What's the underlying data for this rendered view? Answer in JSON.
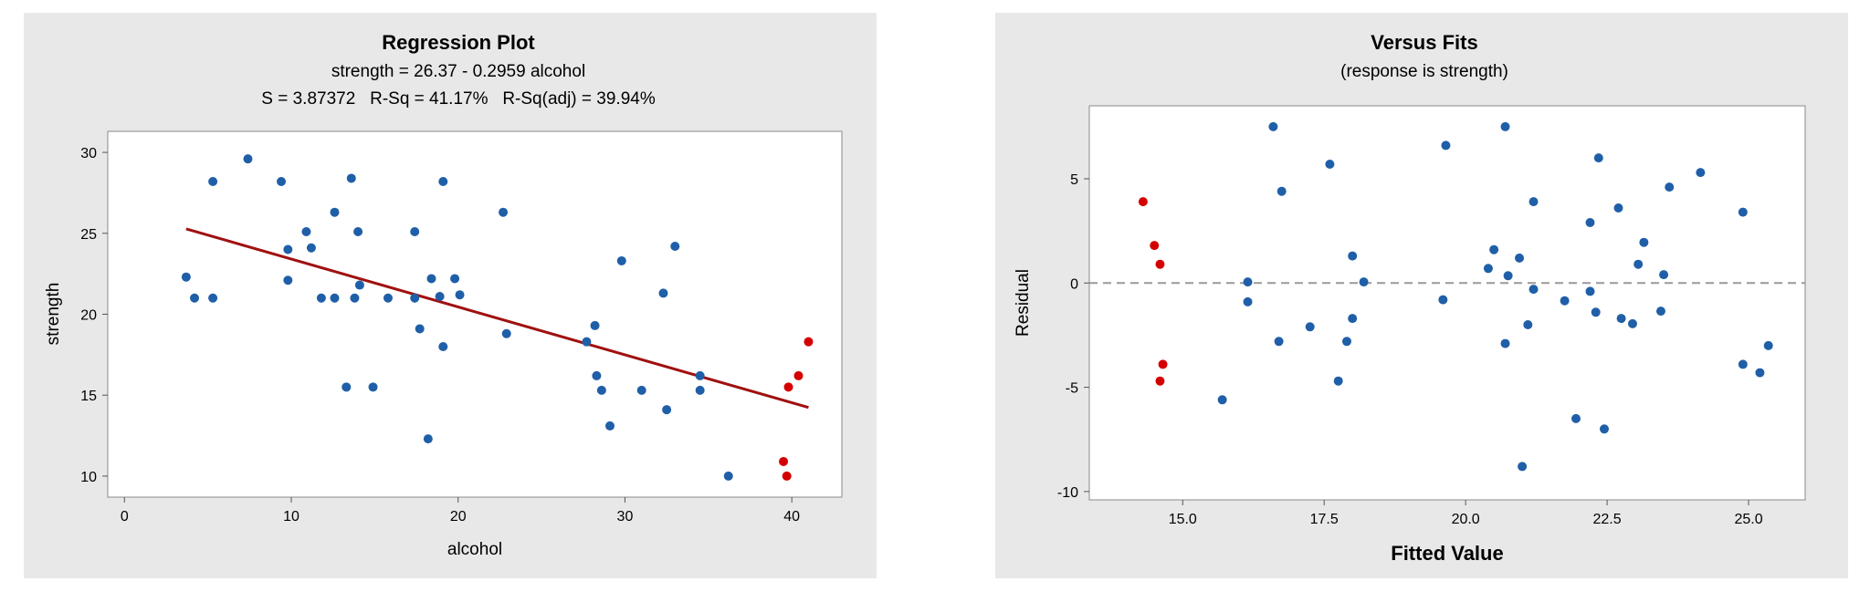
{
  "charts": {
    "left": {
      "title": "Regression Plot",
      "equation": "strength = 26.37 - 0.2959 alcohol",
      "stats": "S = 3.87372   R-Sq = 41.17%   R-Sq(adj) = 39.94%"
    },
    "right": {
      "title": "Versus Fits",
      "subtitle": "(response is strength)"
    }
  },
  "chart_data": [
    {
      "type": "scatter",
      "title": "Regression Plot",
      "subtitle": "strength = 26.37 - 0.2959 alcohol",
      "annotation": "S = 3.87372   R-Sq = 41.17%   R-Sq(adj) = 39.94%",
      "xlabel": "alcohol",
      "ylabel": "strength",
      "xlim": [
        -1,
        43
      ],
      "ylim": [
        8.7,
        31.3
      ],
      "xticks": [
        0,
        10,
        20,
        30,
        40
      ],
      "yticks": [
        10,
        15,
        20,
        25,
        30
      ],
      "fit_line": {
        "intercept": 26.37,
        "slope": -0.2959,
        "x_range": [
          3.7,
          41
        ],
        "color": "#a01010"
      },
      "colors": {
        "point": "#1f5fa8",
        "highlight": "#d40000"
      },
      "series": [
        {
          "color": "#1f5fa8",
          "points": [
            [
              3.7,
              22.3
            ],
            [
              4.2,
              21.0
            ],
            [
              5.3,
              28.2
            ],
            [
              5.3,
              21.0
            ],
            [
              7.4,
              29.6
            ],
            [
              9.4,
              28.2
            ],
            [
              9.8,
              24.0
            ],
            [
              9.8,
              22.1
            ],
            [
              10.9,
              25.1
            ],
            [
              11.2,
              24.1
            ],
            [
              11.8,
              21.0
            ],
            [
              12.6,
              26.3
            ],
            [
              12.6,
              21.0
            ],
            [
              13.3,
              15.5
            ],
            [
              13.6,
              28.4
            ],
            [
              13.8,
              21.0
            ],
            [
              14.0,
              25.1
            ],
            [
              14.1,
              21.8
            ],
            [
              14.9,
              15.5
            ],
            [
              15.8,
              21.0
            ],
            [
              17.4,
              25.1
            ],
            [
              17.4,
              21.0
            ],
            [
              17.7,
              19.1
            ],
            [
              18.2,
              12.3
            ],
            [
              18.4,
              22.2
            ],
            [
              18.9,
              21.1
            ],
            [
              19.1,
              28.2
            ],
            [
              19.1,
              18.0
            ],
            [
              19.8,
              22.2
            ],
            [
              20.1,
              21.2
            ],
            [
              22.7,
              26.3
            ],
            [
              22.9,
              18.8
            ],
            [
              27.7,
              18.3
            ],
            [
              28.2,
              19.3
            ],
            [
              28.3,
              16.2
            ],
            [
              28.6,
              15.3
            ],
            [
              29.1,
              13.1
            ],
            [
              29.8,
              23.3
            ],
            [
              31.0,
              15.3
            ],
            [
              32.3,
              21.3
            ],
            [
              32.5,
              14.1
            ],
            [
              33.0,
              24.2
            ],
            [
              34.5,
              15.3
            ],
            [
              34.5,
              16.2
            ],
            [
              36.2,
              10.0
            ]
          ]
        },
        {
          "color": "#d40000",
          "points": [
            [
              39.5,
              10.9
            ],
            [
              39.7,
              10.0
            ],
            [
              39.8,
              15.5
            ],
            [
              40.4,
              16.2
            ],
            [
              41.0,
              18.3
            ]
          ]
        }
      ]
    },
    {
      "type": "scatter",
      "title": "Versus Fits",
      "subtitle": "(response is strength)",
      "xlabel": "Fitted Value",
      "ylabel": "Residual",
      "xlim": [
        13.35,
        26.0
      ],
      "ylim": [
        -10.4,
        8.5
      ],
      "xticks": [
        15.0,
        17.5,
        20.0,
        22.5,
        25.0
      ],
      "xtick_labels": [
        "15.0",
        "17.5",
        "20.0",
        "22.5",
        "25.0"
      ],
      "yticks": [
        -10,
        -5,
        0,
        5
      ],
      "reference_line": {
        "y": 0,
        "style": "dashed",
        "color": "#999999"
      },
      "series": [
        {
          "color": "#d40000",
          "points": [
            [
              14.3,
              3.9
            ],
            [
              14.5,
              1.8
            ],
            [
              14.6,
              0.9
            ],
            [
              14.6,
              -4.7
            ],
            [
              14.65,
              -3.9
            ]
          ]
        },
        {
          "color": "#1f5fa8",
          "points": [
            [
              15.7,
              -5.6
            ],
            [
              16.15,
              0.05
            ],
            [
              16.15,
              -0.9
            ],
            [
              16.6,
              7.5
            ],
            [
              16.7,
              -2.8
            ],
            [
              16.75,
              4.4
            ],
            [
              17.25,
              -2.1
            ],
            [
              17.6,
              5.7
            ],
            [
              17.75,
              -4.7
            ],
            [
              17.9,
              -2.8
            ],
            [
              18.0,
              1.3
            ],
            [
              18.0,
              -1.7
            ],
            [
              18.2,
              0.05
            ],
            [
              19.6,
              -0.8
            ],
            [
              19.65,
              6.6
            ],
            [
              20.4,
              0.7
            ],
            [
              20.5,
              1.6
            ],
            [
              20.7,
              7.5
            ],
            [
              20.7,
              -2.9
            ],
            [
              20.75,
              0.35
            ],
            [
              20.95,
              1.2
            ],
            [
              21.0,
              -8.8
            ],
            [
              21.1,
              -2.0
            ],
            [
              21.2,
              3.9
            ],
            [
              21.2,
              -0.3
            ],
            [
              21.75,
              -0.85
            ],
            [
              21.95,
              -6.5
            ],
            [
              22.2,
              2.9
            ],
            [
              22.2,
              -0.4
            ],
            [
              22.3,
              -1.4
            ],
            [
              22.35,
              6.0
            ],
            [
              22.45,
              -7.0
            ],
            [
              22.7,
              3.6
            ],
            [
              22.75,
              -1.7
            ],
            [
              22.95,
              -1.95
            ],
            [
              23.05,
              0.9
            ],
            [
              23.15,
              1.95
            ],
            [
              23.45,
              -1.35
            ],
            [
              23.5,
              0.4
            ],
            [
              23.6,
              4.6
            ],
            [
              24.15,
              5.3
            ],
            [
              24.9,
              -3.9
            ],
            [
              24.9,
              3.4
            ],
            [
              25.2,
              -4.3
            ],
            [
              25.35,
              -3.0
            ]
          ]
        }
      ]
    }
  ]
}
